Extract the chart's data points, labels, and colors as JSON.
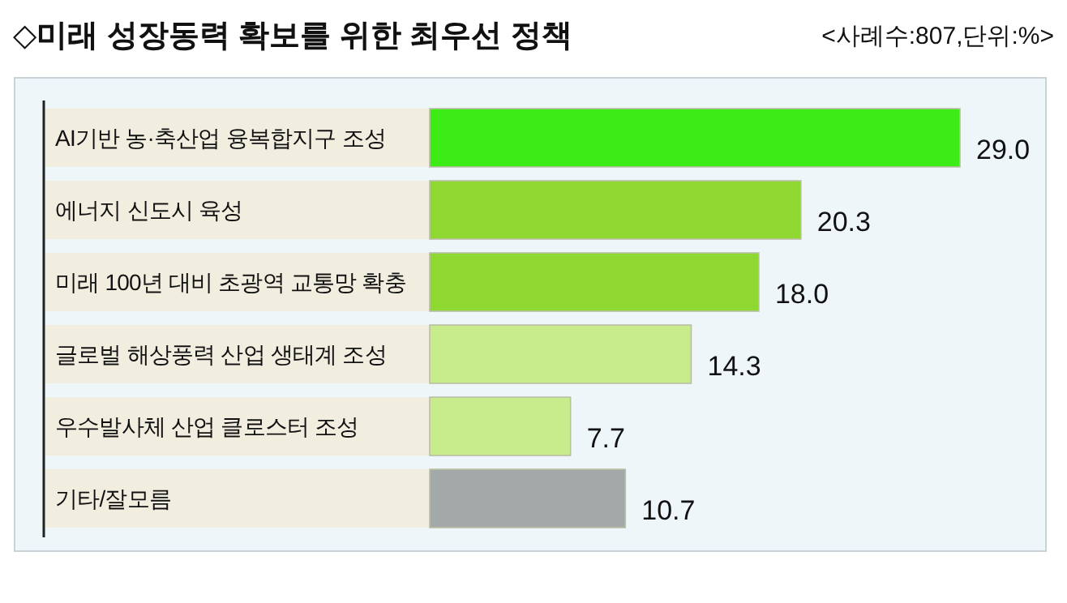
{
  "chart_data": {
    "type": "bar",
    "orientation": "horizontal",
    "title": "◇미래 성장동력 확보를 위한 최우선 정책",
    "subtitle": "<사례수:807,단위:%>",
    "categories": [
      "AI기반 농·축산업 융복합지구 조성",
      "에너지 신도시 육성",
      "미래 100년 대비 초광역 교통망 확충",
      "글로벌 해상풍력 산업 생태계 조성",
      "우수발사체 산업 클로스터 조성",
      "기타/잘모름"
    ],
    "values": [
      29.0,
      20.3,
      18.0,
      14.3,
      7.7,
      10.7
    ],
    "colors": [
      "#3cec14",
      "#8fd832",
      "#8fd832",
      "#c8ec8c",
      "#c8ec8c",
      "#a3a9a8"
    ],
    "value_labels": [
      "29.0",
      "20.3",
      "18.0",
      "14.3",
      "7.7",
      "10.7"
    ]
  }
}
